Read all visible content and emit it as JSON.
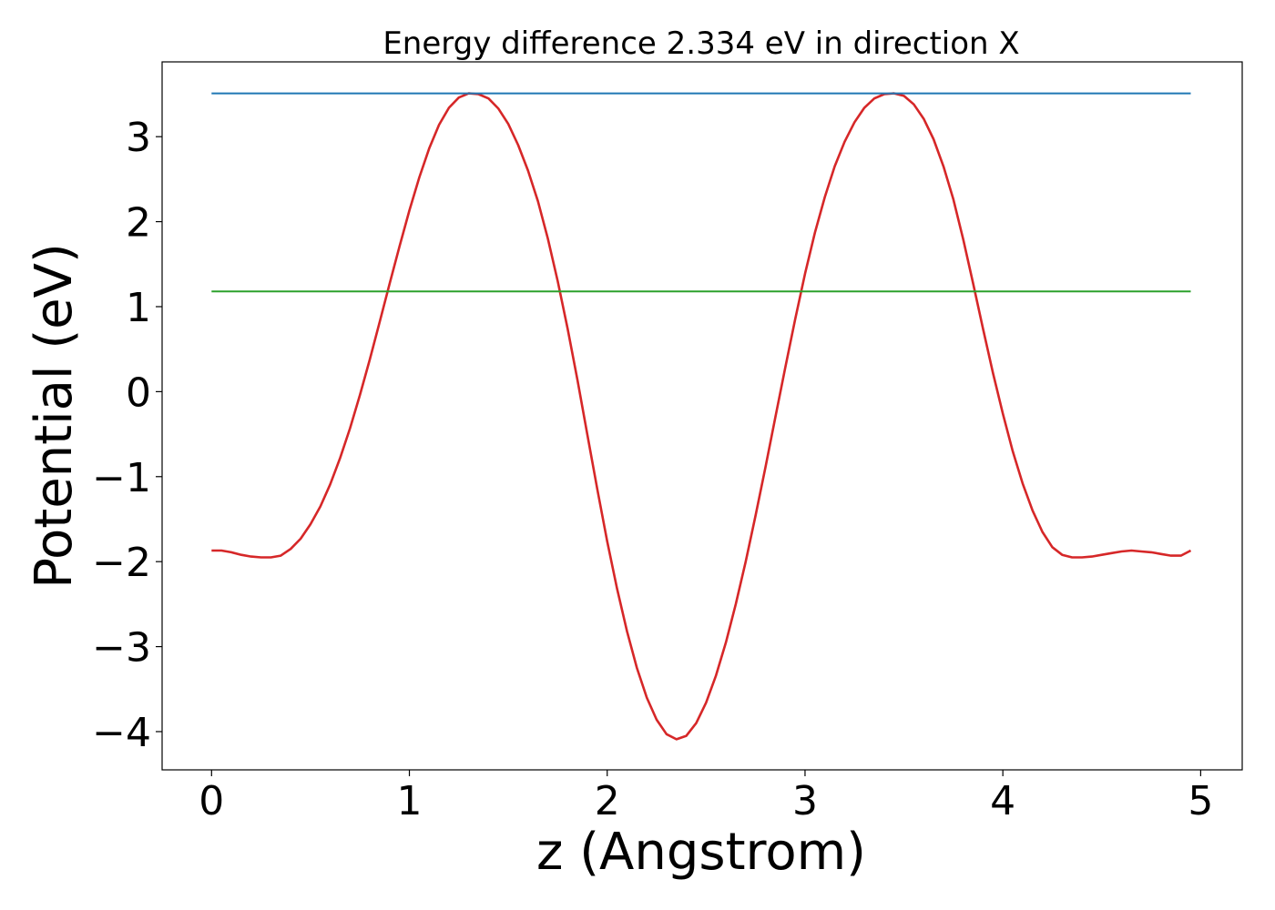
{
  "chart_data": {
    "type": "line",
    "title": "Energy difference 2.334 eV in direction X",
    "xlabel": "z (Angstrom)",
    "ylabel": "Potential (eV)",
    "xlim": [
      -0.25,
      5.21
    ],
    "ylim": [
      -4.45,
      3.88
    ],
    "xticks": [
      0,
      1,
      2,
      3,
      4,
      5
    ],
    "yticks": [
      -4,
      -3,
      -2,
      -1,
      0,
      1,
      2,
      3
    ],
    "xtick_labels": [
      "0",
      "1",
      "2",
      "3",
      "4",
      "5"
    ],
    "ytick_labels": [
      "−4",
      "−3",
      "−2",
      "−1",
      "0",
      "1",
      "2",
      "3"
    ],
    "grid": false,
    "legend": false,
    "series": [
      {
        "color": "#d62728",
        "x": [
          0.0,
          0.05,
          0.1,
          0.15,
          0.2,
          0.25,
          0.3,
          0.35,
          0.4,
          0.45,
          0.5,
          0.55,
          0.6,
          0.65,
          0.7,
          0.75,
          0.8,
          0.85,
          0.9,
          0.95,
          1.0,
          1.05,
          1.1,
          1.15,
          1.2,
          1.25,
          1.3,
          1.35,
          1.4,
          1.45,
          1.5,
          1.55,
          1.6,
          1.65,
          1.7,
          1.75,
          1.8,
          1.85,
          1.9,
          1.95,
          2.0,
          2.05,
          2.1,
          2.15,
          2.2,
          2.25,
          2.3,
          2.35,
          2.4,
          2.45,
          2.5,
          2.55,
          2.6,
          2.65,
          2.7,
          2.75,
          2.8,
          2.85,
          2.9,
          2.95,
          3.0,
          3.05,
          3.1,
          3.15,
          3.2,
          3.25,
          3.3,
          3.35,
          3.4,
          3.45,
          3.5,
          3.55,
          3.6,
          3.65,
          3.7,
          3.75,
          3.8,
          3.85,
          3.9,
          3.95,
          4.0,
          4.05,
          4.1,
          4.15,
          4.2,
          4.25,
          4.3,
          4.35,
          4.4,
          4.45,
          4.5,
          4.55,
          4.6,
          4.65,
          4.7,
          4.75,
          4.8,
          4.85,
          4.9,
          4.95
        ],
        "y": [
          -1.87,
          -1.87,
          -1.89,
          -1.92,
          -1.94,
          -1.95,
          -1.95,
          -1.93,
          -1.85,
          -1.73,
          -1.56,
          -1.35,
          -1.09,
          -0.78,
          -0.43,
          -0.04,
          0.38,
          0.82,
          1.27,
          1.71,
          2.13,
          2.52,
          2.86,
          3.14,
          3.34,
          3.46,
          3.51,
          3.5,
          3.45,
          3.33,
          3.15,
          2.9,
          2.6,
          2.24,
          1.8,
          1.3,
          0.74,
          0.13,
          -0.51,
          -1.15,
          -1.76,
          -2.32,
          -2.82,
          -3.25,
          -3.6,
          -3.86,
          -4.03,
          -4.09,
          -4.05,
          -3.9,
          -3.66,
          -3.34,
          -2.95,
          -2.5,
          -2.0,
          -1.46,
          -0.89,
          -0.3,
          0.28,
          0.85,
          1.39,
          1.87,
          2.29,
          2.65,
          2.94,
          3.17,
          3.34,
          3.45,
          3.5,
          3.51,
          3.48,
          3.38,
          3.21,
          2.97,
          2.65,
          2.26,
          1.79,
          1.27,
          0.74,
          0.22,
          -0.26,
          -0.7,
          -1.08,
          -1.4,
          -1.65,
          -1.83,
          -1.92,
          -1.95,
          -1.95,
          -1.94,
          -1.92,
          -1.9,
          -1.88,
          -1.87,
          -1.88,
          -1.89,
          -1.91,
          -1.93,
          -1.93,
          -1.87
        ]
      },
      {
        "color": "#1f77b4",
        "x": [
          0.0,
          4.95
        ],
        "y": [
          3.51,
          3.51
        ]
      },
      {
        "color": "#2ca02c",
        "x": [
          0.0,
          4.95
        ],
        "y": [
          1.18,
          1.18
        ]
      }
    ]
  }
}
